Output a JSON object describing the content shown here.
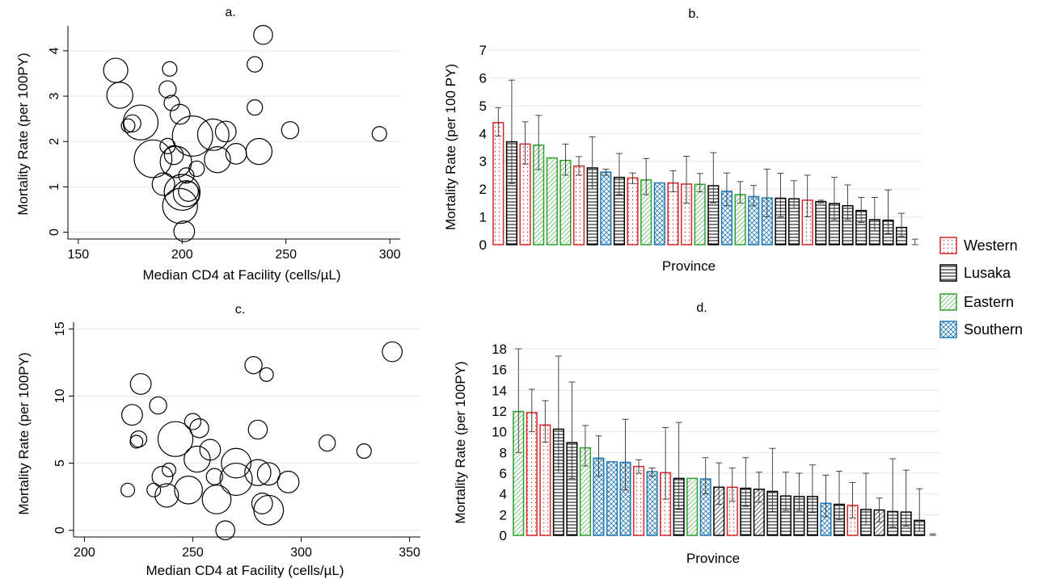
{
  "legend": {
    "items": [
      {
        "label": "Western",
        "color": "#d62728",
        "pattern": "dots"
      },
      {
        "label": "Lusaka",
        "color": "#000000",
        "pattern": "hlines"
      },
      {
        "label": "Eastern",
        "color": "#2ca02c",
        "pattern": "diag"
      },
      {
        "label": "Southern",
        "color": "#1f77b4",
        "pattern": "cross"
      }
    ]
  },
  "chart_data": [
    {
      "panel": "a.",
      "type": "scatter",
      "title": "a.",
      "xlabel": "Median CD4 at Facility (cells/µL)",
      "ylabel": "Mortality Rate (per 100PY)",
      "xlim": [
        145,
        305
      ],
      "ylim": [
        -0.15,
        4.55
      ],
      "xticks": [
        150,
        200,
        250,
        300
      ],
      "yticks": [
        0,
        1,
        2,
        3,
        4
      ],
      "grid": true,
      "points": [
        {
          "x": 168,
          "y": 3.57,
          "s": 2
        },
        {
          "x": 170,
          "y": 3.02,
          "s": 2.2
        },
        {
          "x": 174,
          "y": 2.35,
          "s": 0.8
        },
        {
          "x": 176,
          "y": 2.4,
          "s": 1.2
        },
        {
          "x": 180,
          "y": 2.42,
          "s": 3.2
        },
        {
          "x": 186,
          "y": 1.62,
          "s": 3.5
        },
        {
          "x": 191,
          "y": 1.06,
          "s": 1.8
        },
        {
          "x": 193,
          "y": 3.15,
          "s": 1.2
        },
        {
          "x": 193,
          "y": 1.9,
          "s": 1
        },
        {
          "x": 194,
          "y": 3.6,
          "s": 0.9
        },
        {
          "x": 195,
          "y": 2.85,
          "s": 1
        },
        {
          "x": 196,
          "y": 1.7,
          "s": 1.4
        },
        {
          "x": 197,
          "y": 1.55,
          "s": 2.8
        },
        {
          "x": 199,
          "y": 2.6,
          "s": 1.5
        },
        {
          "x": 199,
          "y": 0.58,
          "s": 3.2
        },
        {
          "x": 200,
          "y": 0.88,
          "s": 3.3
        },
        {
          "x": 201,
          "y": 0.02,
          "s": 1.6
        },
        {
          "x": 202,
          "y": 1.25,
          "s": 1
        },
        {
          "x": 202,
          "y": 0.85,
          "s": 2.2
        },
        {
          "x": 203,
          "y": 0.9,
          "s": 1.5
        },
        {
          "x": 205,
          "y": 2.12,
          "s": 3.8
        },
        {
          "x": 207,
          "y": 1.4,
          "s": 1
        },
        {
          "x": 215,
          "y": 2.15,
          "s": 2.8
        },
        {
          "x": 217,
          "y": 1.6,
          "s": 2.2
        },
        {
          "x": 221,
          "y": 2.22,
          "s": 1.6
        },
        {
          "x": 226,
          "y": 1.73,
          "s": 1.6
        },
        {
          "x": 235,
          "y": 3.7,
          "s": 1
        },
        {
          "x": 235,
          "y": 2.75,
          "s": 1
        },
        {
          "x": 237,
          "y": 1.78,
          "s": 2.2
        },
        {
          "x": 239,
          "y": 4.35,
          "s": 1.4
        },
        {
          "x": 252,
          "y": 2.25,
          "s": 1.2
        },
        {
          "x": 295,
          "y": 2.17,
          "s": 0.9
        }
      ]
    },
    {
      "panel": "b.",
      "type": "bar",
      "title": "b.",
      "xlabel": "Province",
      "ylabel": "Mortality Rate (per 100 PY)",
      "ylim": [
        0,
        7
      ],
      "yticks": [
        0,
        1,
        2,
        3,
        4,
        5,
        6,
        7
      ],
      "grid": true,
      "bars": [
        {
          "province": "Western",
          "value": 4.39,
          "lo": 3.9,
          "hi": 4.93
        },
        {
          "province": "Lusaka",
          "value": 3.7,
          "lo": 2.2,
          "hi": 5.92
        },
        {
          "province": "Western",
          "value": 3.62,
          "lo": 2.9,
          "hi": 4.42
        },
        {
          "province": "Eastern",
          "value": 3.58,
          "lo": 2.7,
          "hi": 4.65
        },
        {
          "province": "Eastern",
          "value": 3.12,
          "lo": 3.12,
          "hi": 3.12
        },
        {
          "province": "Eastern",
          "value": 3.03,
          "lo": 2.5,
          "hi": 3.62
        },
        {
          "province": "Western",
          "value": 2.83,
          "lo": 2.5,
          "hi": 3.17
        },
        {
          "province": "Lusaka",
          "value": 2.76,
          "lo": 2.0,
          "hi": 3.88
        },
        {
          "province": "Southern",
          "value": 2.61,
          "lo": 2.5,
          "hi": 2.72
        },
        {
          "province": "Lusaka",
          "value": 2.42,
          "lo": 1.8,
          "hi": 3.28
        },
        {
          "province": "Western",
          "value": 2.4,
          "lo": 2.2,
          "hi": 2.58
        },
        {
          "province": "Eastern",
          "value": 2.33,
          "lo": 1.8,
          "hi": 3.1
        },
        {
          "province": "Southern",
          "value": 2.22,
          "lo": 2.22,
          "hi": 2.22
        },
        {
          "province": "Western",
          "value": 2.22,
          "lo": 1.9,
          "hi": 2.66
        },
        {
          "province": "Western",
          "value": 2.18,
          "lo": 1.5,
          "hi": 3.18
        },
        {
          "province": "Eastern",
          "value": 2.17,
          "lo": 1.9,
          "hi": 2.56
        },
        {
          "province": "Lusaka",
          "value": 2.12,
          "lo": 1.5,
          "hi": 3.31
        },
        {
          "province": "Southern",
          "value": 1.92,
          "lo": 1.4,
          "hi": 2.58
        },
        {
          "province": "Eastern",
          "value": 1.8,
          "lo": 1.5,
          "hi": 2.27
        },
        {
          "province": "Southern",
          "value": 1.73,
          "lo": 1.4,
          "hi": 2.13
        },
        {
          "province": "Southern",
          "value": 1.68,
          "lo": 1.0,
          "hi": 2.72
        },
        {
          "province": "Lusaka",
          "value": 1.67,
          "lo": 1.0,
          "hi": 2.57
        },
        {
          "province": "Lusaka",
          "value": 1.65,
          "lo": 1.3,
          "hi": 2.3
        },
        {
          "province": "Western",
          "value": 1.6,
          "lo": 1.0,
          "hi": 2.5
        },
        {
          "province": "Lusaka",
          "value": 1.55,
          "lo": 1.5,
          "hi": 1.6
        },
        {
          "province": "Lusaka",
          "value": 1.48,
          "lo": 0.9,
          "hi": 2.42
        },
        {
          "province": "Lusaka",
          "value": 1.4,
          "lo": 0.9,
          "hi": 2.15
        },
        {
          "province": "Lusaka",
          "value": 1.23,
          "lo": 0.8,
          "hi": 1.7
        },
        {
          "province": "Lusaka",
          "value": 0.9,
          "lo": 0.5,
          "hi": 1.7
        },
        {
          "province": "Lusaka",
          "value": 0.88,
          "lo": 0.4,
          "hi": 1.97
        },
        {
          "province": "Lusaka",
          "value": 0.62,
          "lo": 0.3,
          "hi": 1.13
        },
        {
          "province": "Lusaka",
          "value": 0.0,
          "lo": 0.0,
          "hi": 0.2
        }
      ]
    },
    {
      "panel": "c.",
      "type": "scatter",
      "title": "c.",
      "xlabel": "Median CD4 at Facility (cells/µL)",
      "ylabel": "Mortality Rate (per 100PY)",
      "xlim": [
        195,
        355
      ],
      "ylim": [
        -0.5,
        15.5
      ],
      "xticks": [
        200,
        250,
        300,
        350
      ],
      "yticks": [
        0,
        5,
        10,
        15
      ],
      "grid": true,
      "points": [
        {
          "x": 220,
          "y": 3.0,
          "s": 0.8
        },
        {
          "x": 222,
          "y": 8.6,
          "s": 1.6
        },
        {
          "x": 224,
          "y": 6.6,
          "s": 0.7
        },
        {
          "x": 225,
          "y": 6.8,
          "s": 1.1
        },
        {
          "x": 226,
          "y": 10.9,
          "s": 1.6
        },
        {
          "x": 232,
          "y": 3.0,
          "s": 0.8
        },
        {
          "x": 234,
          "y": 9.3,
          "s": 1.2
        },
        {
          "x": 236,
          "y": 4.0,
          "s": 1.6
        },
        {
          "x": 238,
          "y": 2.6,
          "s": 1.9
        },
        {
          "x": 239,
          "y": 4.5,
          "s": 0.8
        },
        {
          "x": 242,
          "y": 6.8,
          "s": 3.2
        },
        {
          "x": 248,
          "y": 3.0,
          "s": 2.4
        },
        {
          "x": 250,
          "y": 8.1,
          "s": 1.1
        },
        {
          "x": 252,
          "y": 5.3,
          "s": 2.2
        },
        {
          "x": 253,
          "y": 7.6,
          "s": 1.4
        },
        {
          "x": 258,
          "y": 6.0,
          "s": 1.6
        },
        {
          "x": 260,
          "y": 4.0,
          "s": 1.1
        },
        {
          "x": 261,
          "y": 2.3,
          "s": 2.5
        },
        {
          "x": 265,
          "y": 0.0,
          "s": 1.4
        },
        {
          "x": 270,
          "y": 5.0,
          "s": 2.6
        },
        {
          "x": 270,
          "y": 3.8,
          "s": 2.9
        },
        {
          "x": 278,
          "y": 12.3,
          "s": 1.2
        },
        {
          "x": 280,
          "y": 7.5,
          "s": 1.4
        },
        {
          "x": 280,
          "y": 4.3,
          "s": 2.2
        },
        {
          "x": 282,
          "y": 2.0,
          "s": 1.6
        },
        {
          "x": 284,
          "y": 11.6,
          "s": 0.8
        },
        {
          "x": 285,
          "y": 4.2,
          "s": 1.8
        },
        {
          "x": 285,
          "y": 1.5,
          "s": 2.6
        },
        {
          "x": 294,
          "y": 3.6,
          "s": 1.7
        },
        {
          "x": 312,
          "y": 6.5,
          "s": 1.1
        },
        {
          "x": 329,
          "y": 5.9,
          "s": 0.9
        },
        {
          "x": 342,
          "y": 13.3,
          "s": 1.5
        }
      ]
    },
    {
      "panel": "d.",
      "type": "bar",
      "title": "d.",
      "xlabel": "Province",
      "ylabel": "Mortality Rate (per 100PY)",
      "ylim": [
        0,
        18
      ],
      "yticks": [
        0,
        2,
        4,
        6,
        8,
        10,
        12,
        14,
        16,
        18
      ],
      "grid": true,
      "bars": [
        {
          "province": "Eastern",
          "value": 11.95,
          "lo": 8.0,
          "hi": 18.0
        },
        {
          "province": "Western",
          "value": 11.85,
          "lo": 10.0,
          "hi": 14.1
        },
        {
          "province": "Western",
          "value": 10.65,
          "lo": 9.0,
          "hi": 13.0
        },
        {
          "province": "Lusaka",
          "value": 10.25,
          "lo": 6.0,
          "hi": 17.3
        },
        {
          "province": "Lusaka",
          "value": 8.95,
          "lo": 5.5,
          "hi": 14.8
        },
        {
          "province": "Eastern",
          "value": 8.45,
          "lo": 6.7,
          "hi": 10.6
        },
        {
          "province": "Southern",
          "value": 7.45,
          "lo": 5.7,
          "hi": 9.6
        },
        {
          "province": "Southern",
          "value": 7.1,
          "lo": 7.1,
          "hi": 7.1
        },
        {
          "province": "Southern",
          "value": 7.05,
          "lo": 4.4,
          "hi": 11.2
        },
        {
          "province": "Western",
          "value": 6.65,
          "lo": 6.0,
          "hi": 7.3
        },
        {
          "province": "Southern",
          "value": 6.15,
          "lo": 5.7,
          "hi": 6.5
        },
        {
          "province": "Western",
          "value": 6.05,
          "lo": 3.5,
          "hi": 10.4
        },
        {
          "province": "Lusaka",
          "value": 5.5,
          "lo": 2.5,
          "hi": 10.9
        },
        {
          "province": "Eastern",
          "value": 5.5,
          "lo": 5.5,
          "hi": 5.5
        },
        {
          "province": "Southern",
          "value": 5.45,
          "lo": 4.0,
          "hi": 7.5
        },
        {
          "province": "Eastern",
          "value": 4.65,
          "lo": 3.0,
          "hi": 7.0
        },
        {
          "province": "Western",
          "value": 4.65,
          "lo": 3.3,
          "hi": 6.5
        },
        {
          "province": "Lusaka",
          "value": 4.55,
          "lo": 2.8,
          "hi": 7.5
        },
        {
          "province": "Eastern",
          "value": 4.45,
          "lo": 3.2,
          "hi": 6.1
        },
        {
          "province": "Lusaka",
          "value": 4.25,
          "lo": 2.3,
          "hi": 8.4
        },
        {
          "province": "Lusaka",
          "value": 3.8,
          "lo": 2.4,
          "hi": 6.1
        },
        {
          "province": "Lusaka",
          "value": 3.75,
          "lo": 2.4,
          "hi": 6.0
        },
        {
          "province": "Lusaka",
          "value": 3.75,
          "lo": 2.2,
          "hi": 6.8
        },
        {
          "province": "Southern",
          "value": 3.1,
          "lo": 1.8,
          "hi": 5.8
        },
        {
          "province": "Lusaka",
          "value": 3.0,
          "lo": 1.5,
          "hi": 6.2
        },
        {
          "province": "Western",
          "value": 2.9,
          "lo": 1.7,
          "hi": 5.1
        },
        {
          "province": "Lusaka",
          "value": 2.5,
          "lo": 1.0,
          "hi": 6.0
        },
        {
          "province": "Eastern",
          "value": 2.45,
          "lo": 1.3,
          "hi": 3.6
        },
        {
          "province": "Lusaka",
          "value": 2.3,
          "lo": 0.8,
          "hi": 7.4
        },
        {
          "province": "Lusaka",
          "value": 2.25,
          "lo": 0.9,
          "hi": 6.3
        },
        {
          "province": "Lusaka",
          "value": 1.45,
          "lo": 0.4,
          "hi": 4.5
        },
        {
          "province": "Lusaka",
          "value": 0.0,
          "lo": 0.0,
          "hi": 0.15
        }
      ]
    }
  ]
}
